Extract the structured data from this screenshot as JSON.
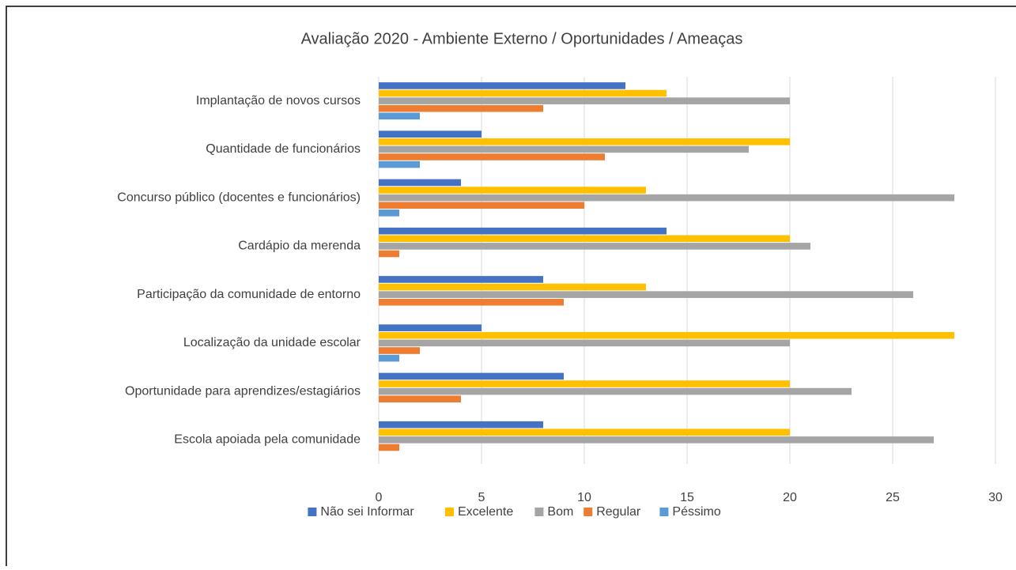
{
  "chart_data": {
    "type": "barh",
    "title": "Avaliação 2020 - Ambiente Externo / Oportunidades / Ameaças",
    "categories": [
      "Implantação de novos cursos",
      "Quantidade de funcionários",
      "Concurso público (docentes e funcionários)",
      "Cardápio da merenda",
      "Participação da comunidade de entorno",
      "Localização da unidade escolar",
      "Oportunidade para aprendizes/estagiários",
      "Escola apoiada pela comunidade"
    ],
    "series": [
      {
        "name": "Não sei Informar",
        "color": "#4472c4",
        "values": [
          12,
          5,
          4,
          14,
          8,
          5,
          9,
          8
        ]
      },
      {
        "name": "Excelente",
        "color": "#ffc000",
        "values": [
          14,
          20,
          13,
          20,
          13,
          28,
          20,
          20
        ]
      },
      {
        "name": "Bom",
        "color": "#a5a5a5",
        "values": [
          20,
          18,
          28,
          21,
          26,
          20,
          23,
          27
        ]
      },
      {
        "name": "Regular",
        "color": "#ed7d31",
        "values": [
          8,
          11,
          10,
          1,
          9,
          2,
          4,
          1
        ]
      },
      {
        "name": "Péssimo",
        "color": "#5b9bd5",
        "values": [
          2,
          2,
          1,
          0,
          0,
          1,
          0,
          0
        ]
      }
    ],
    "xlim": [
      0,
      30
    ],
    "xticks": [
      0,
      5,
      10,
      15,
      20,
      25,
      30
    ],
    "grid": true,
    "legend": "bottom"
  }
}
